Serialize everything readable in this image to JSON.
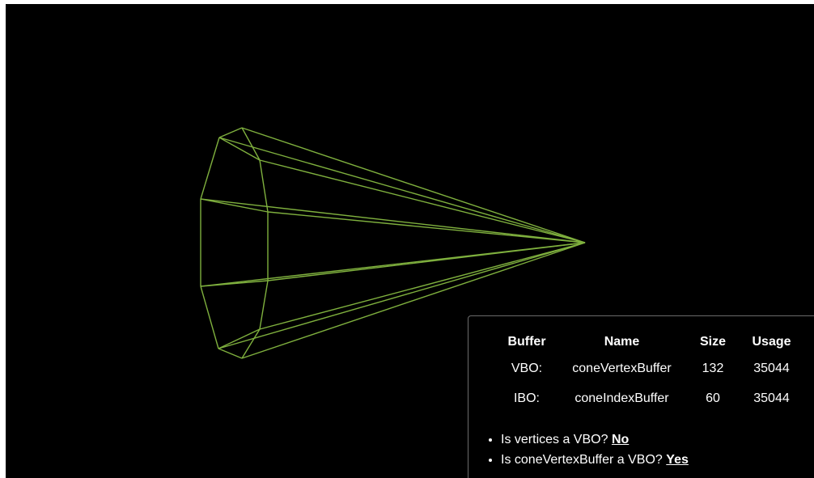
{
  "table": {
    "headers": [
      "Buffer",
      "Name",
      "Size",
      "Usage"
    ],
    "rows": [
      [
        "VBO:",
        "coneVertexBuffer",
        "132",
        "35044"
      ],
      [
        "IBO:",
        "coneIndexBuffer",
        "60",
        "35044"
      ]
    ]
  },
  "checks": [
    {
      "question": "Is vertices a VBO?",
      "answer": "No"
    },
    {
      "question": "Is coneVertexBuffer a VBO?",
      "answer": "Yes"
    }
  ],
  "colors": {
    "background": "#000000",
    "wireframe": "#7fb03e",
    "text": "#ffffff"
  }
}
